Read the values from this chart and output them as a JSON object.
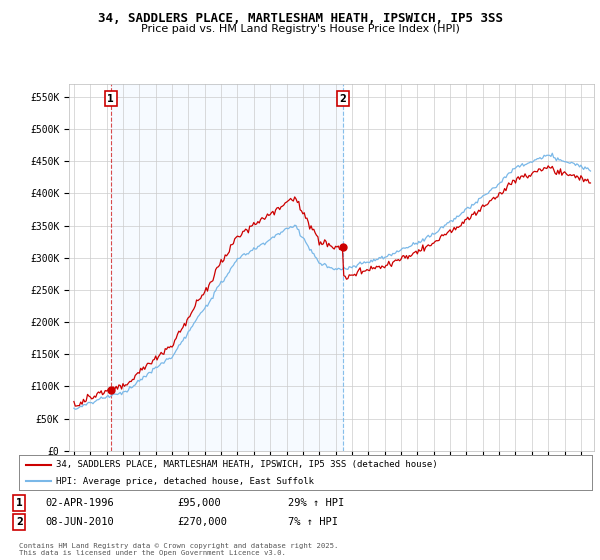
{
  "title": "34, SADDLERS PLACE, MARTLESHAM HEATH, IPSWICH, IP5 3SS",
  "subtitle": "Price paid vs. HM Land Registry's House Price Index (HPI)",
  "legend_line1": "34, SADDLERS PLACE, MARTLESHAM HEATH, IPSWICH, IP5 3SS (detached house)",
  "legend_line2": "HPI: Average price, detached house, East Suffolk",
  "annotation1_date": "02-APR-1996",
  "annotation1_price": "£95,000",
  "annotation1_hpi": "29% ↑ HPI",
  "annotation2_date": "08-JUN-2010",
  "annotation2_price": "£270,000",
  "annotation2_hpi": "7% ↑ HPI",
  "copyright": "Contains HM Land Registry data © Crown copyright and database right 2025.\nThis data is licensed under the Open Government Licence v3.0.",
  "sale1_year": 1996.25,
  "sale1_value": 95000,
  "sale2_year": 2010.44,
  "sale2_value": 270000,
  "hpi_color": "#7ab8e8",
  "price_color": "#cc0000",
  "background_color": "#ffffff",
  "shading_color": "#ddeeff",
  "grid_color": "#cccccc",
  "ylim_max": 570000,
  "xlim_start": 1993.7,
  "xlim_end": 2025.8
}
